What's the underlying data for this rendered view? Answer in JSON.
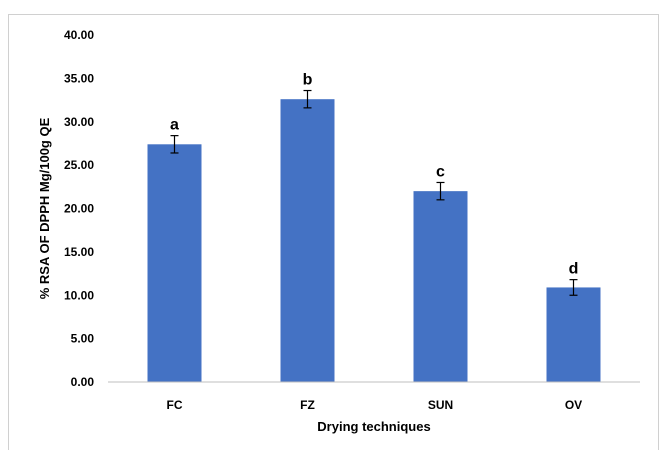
{
  "chart_data": {
    "type": "bar",
    "title": "",
    "xlabel": "Drying techniques",
    "ylabel": "% RSA OF DPPH Mg/100g QE",
    "categories": [
      "FC",
      "FZ",
      "SUN",
      "OV"
    ],
    "values": [
      27.4,
      32.6,
      22.0,
      10.9
    ],
    "error": [
      1.0,
      1.0,
      1.0,
      0.9
    ],
    "significance_letters": [
      "a",
      "b",
      "c",
      "d"
    ],
    "ylim": [
      0,
      40
    ],
    "yticks": [
      "0.00",
      "5.00",
      "10.00",
      "15.00",
      "20.00",
      "25.00",
      "30.00",
      "35.00",
      "40.00"
    ],
    "grid": false,
    "legend": "none",
    "bar_color": "#4472C4"
  }
}
